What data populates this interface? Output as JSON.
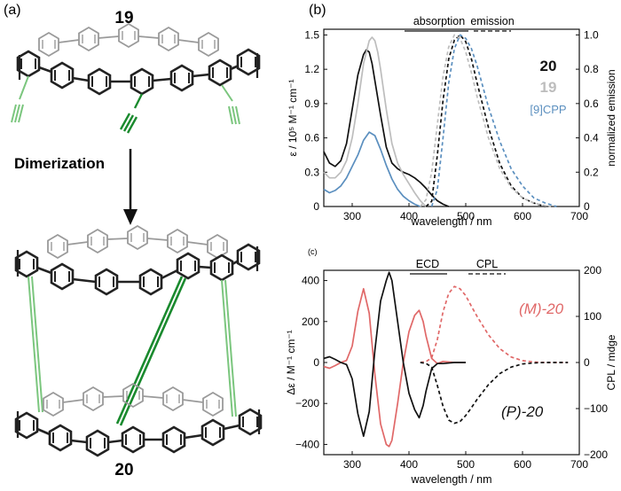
{
  "panel_a": {
    "label": "(a)",
    "compound_top": "19",
    "compound_bottom": "20",
    "arrow_label": "Dimerization"
  },
  "colors": {
    "black": "#111111",
    "gray": "#bdbdbd",
    "blue": "#5b8fbf",
    "red": "#e06868",
    "green_dark": "#1a8a2e",
    "green_light": "#7bc67e"
  },
  "chart_data": [
    {
      "panel": "(b)",
      "type": "line",
      "title": "",
      "xlabel": "wavelength / nm",
      "ylabel": "ε / 10⁵ M⁻¹ cm⁻¹",
      "y2label": "normalized emission",
      "xlim": [
        250,
        700
      ],
      "ylim": [
        0,
        1.55
      ],
      "y2lim": [
        0,
        1.033
      ],
      "x_ticks": [
        "300",
        "400",
        "500",
        "600",
        "700"
      ],
      "y_ticks": [
        "0",
        "0.3",
        "0.6",
        "0.9",
        "1.2",
        "1.5"
      ],
      "y2_ticks": [
        "0",
        "0.2",
        "0.4",
        "0.6",
        "0.8",
        "1.0"
      ],
      "legend_headers": [
        "absorption",
        "emission"
      ],
      "legend": [
        {
          "name": "20",
          "color": "#111111"
        },
        {
          "name": "19",
          "color": "#bdbdbd"
        },
        {
          "name": "[9]CPP",
          "color": "#5b8fbf"
        }
      ],
      "series": [
        {
          "name": "20 absorption",
          "axis": "left",
          "style": "solid",
          "color": "#111111",
          "x": [
            250,
            260,
            270,
            280,
            290,
            300,
            310,
            320,
            325,
            330,
            335,
            340,
            350,
            360,
            370,
            380,
            390,
            400,
            410,
            420,
            430,
            440,
            450,
            460,
            470
          ],
          "y": [
            0.48,
            0.38,
            0.35,
            0.4,
            0.55,
            0.85,
            1.15,
            1.33,
            1.37,
            1.35,
            1.25,
            1.1,
            0.8,
            0.52,
            0.38,
            0.33,
            0.3,
            0.28,
            0.25,
            0.21,
            0.16,
            0.1,
            0.05,
            0.02,
            0.0
          ]
        },
        {
          "name": "19 absorption",
          "axis": "left",
          "style": "solid",
          "color": "#bdbdbd",
          "x": [
            250,
            260,
            270,
            280,
            290,
            300,
            310,
            320,
            330,
            335,
            340,
            345,
            350,
            360,
            370,
            380,
            390,
            400,
            410,
            420,
            430
          ],
          "y": [
            0.3,
            0.25,
            0.25,
            0.3,
            0.4,
            0.6,
            0.9,
            1.25,
            1.45,
            1.48,
            1.45,
            1.35,
            1.2,
            0.85,
            0.55,
            0.38,
            0.28,
            0.2,
            0.12,
            0.05,
            0.0
          ]
        },
        {
          "name": "[9]CPP absorption",
          "axis": "left",
          "style": "solid",
          "color": "#5b8fbf",
          "x": [
            250,
            260,
            270,
            280,
            290,
            300,
            310,
            320,
            330,
            340,
            350,
            360,
            370,
            380,
            390,
            400,
            410,
            420
          ],
          "y": [
            0.15,
            0.12,
            0.14,
            0.18,
            0.25,
            0.35,
            0.45,
            0.58,
            0.65,
            0.62,
            0.5,
            0.36,
            0.24,
            0.15,
            0.09,
            0.05,
            0.02,
            0.0
          ]
        },
        {
          "name": "20 emission",
          "axis": "right",
          "style": "dashed",
          "color": "#111111",
          "x": [
            430,
            440,
            450,
            460,
            470,
            480,
            490,
            500,
            510,
            520,
            540,
            560,
            580,
            600,
            620,
            640
          ],
          "y": [
            0.0,
            0.03,
            0.3,
            0.62,
            0.86,
            0.97,
            1.0,
            0.96,
            0.86,
            0.72,
            0.46,
            0.25,
            0.12,
            0.05,
            0.02,
            0.0
          ]
        },
        {
          "name": "19 emission",
          "axis": "right",
          "style": "dashed",
          "color": "#bdbdbd",
          "x": [
            420,
            430,
            440,
            450,
            460,
            470,
            480,
            490,
            500,
            510,
            520,
            540,
            560,
            580,
            600,
            620,
            640,
            650
          ],
          "y": [
            0.0,
            0.04,
            0.2,
            0.48,
            0.76,
            0.93,
            1.0,
            0.98,
            0.9,
            0.78,
            0.64,
            0.4,
            0.22,
            0.11,
            0.05,
            0.02,
            0.005,
            0.0
          ]
        },
        {
          "name": "[9]CPP emission",
          "axis": "right",
          "style": "dashed",
          "color": "#5b8fbf",
          "x": [
            440,
            450,
            460,
            470,
            480,
            490,
            500,
            510,
            520,
            530,
            540,
            560,
            580,
            600,
            620,
            640,
            660
          ],
          "y": [
            0.0,
            0.1,
            0.4,
            0.72,
            0.92,
            1.0,
            0.98,
            0.92,
            0.82,
            0.7,
            0.58,
            0.38,
            0.22,
            0.12,
            0.05,
            0.02,
            0.0
          ]
        }
      ]
    },
    {
      "panel": "(c)",
      "type": "line",
      "title": "",
      "xlabel": "wavelength / nm",
      "ylabel": "Δε / M⁻¹ cm⁻¹",
      "y2label": "CPL / mdge",
      "xlim": [
        250,
        700
      ],
      "ylim": [
        -450,
        450
      ],
      "y2lim": [
        -200,
        200
      ],
      "x_ticks": [
        "300",
        "400",
        "500",
        "600",
        "700"
      ],
      "y_ticks": [
        "400",
        "200",
        "0",
        "−200",
        "−400"
      ],
      "y2_ticks": [
        "200",
        "100",
        "0",
        "−100",
        "−200"
      ],
      "legend_headers": [
        "ECD",
        "CPL"
      ],
      "annotations": [
        "(M)-20",
        "(P)-20"
      ],
      "series": [
        {
          "name": "(M)-20 ECD",
          "axis": "left",
          "style": "solid",
          "color": "#e06868",
          "x": [
            250,
            260,
            270,
            280,
            290,
            300,
            310,
            320,
            330,
            340,
            350,
            360,
            365,
            370,
            380,
            390,
            400,
            410,
            418,
            425,
            430,
            440,
            450,
            460,
            480,
            500
          ],
          "y": [
            -20,
            -28,
            -15,
            0,
            10,
            80,
            250,
            360,
            240,
            -60,
            -300,
            -400,
            -410,
            -380,
            -200,
            0,
            150,
            230,
            255,
            200,
            130,
            20,
            -5,
            5,
            0,
            0
          ]
        },
        {
          "name": "(P)-20 ECD",
          "axis": "left",
          "style": "solid",
          "color": "#111111",
          "x": [
            250,
            260,
            270,
            280,
            290,
            300,
            310,
            320,
            330,
            340,
            350,
            360,
            365,
            370,
            380,
            390,
            400,
            410,
            418,
            425,
            430,
            440,
            450,
            460,
            480,
            500
          ],
          "y": [
            20,
            28,
            15,
            0,
            -10,
            -80,
            -250,
            -360,
            -240,
            60,
            300,
            400,
            440,
            400,
            200,
            0,
            -150,
            -230,
            -270,
            -210,
            -140,
            -30,
            -5,
            -5,
            0,
            0
          ]
        },
        {
          "name": "(M)-20 CPL",
          "axis": "right",
          "style": "dashed",
          "color": "#e06868",
          "x": [
            420,
            430,
            440,
            450,
            460,
            470,
            480,
            490,
            500,
            510,
            520,
            540,
            560,
            580,
            600,
            620,
            640,
            660,
            680
          ],
          "y": [
            0,
            2,
            10,
            50,
            110,
            150,
            165,
            160,
            145,
            122,
            100,
            60,
            30,
            12,
            4,
            1,
            0,
            0,
            0
          ]
        },
        {
          "name": "(P)-20 CPL",
          "axis": "right",
          "style": "dashed",
          "color": "#111111",
          "x": [
            420,
            430,
            440,
            450,
            460,
            470,
            480,
            490,
            500,
            510,
            520,
            540,
            560,
            580,
            600,
            620,
            640,
            660,
            680
          ],
          "y": [
            0,
            -2,
            -10,
            -50,
            -95,
            -125,
            -132,
            -128,
            -115,
            -98,
            -80,
            -48,
            -24,
            -10,
            -3,
            -1,
            0,
            0,
            0
          ]
        }
      ]
    }
  ]
}
